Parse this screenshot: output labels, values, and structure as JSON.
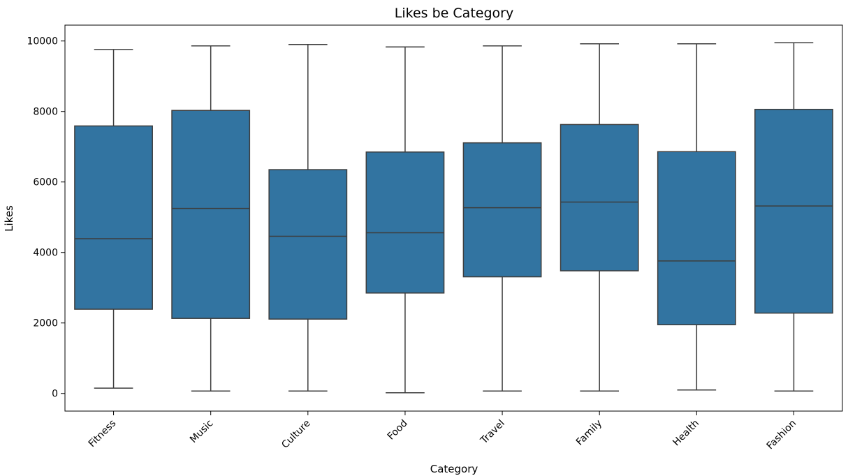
{
  "chart_data": {
    "type": "box",
    "title": "Likes be Category",
    "xlabel": "Category",
    "ylabel": "Likes",
    "ylim": [
      -500,
      10450
    ],
    "yticks": [
      0,
      2000,
      4000,
      6000,
      8000,
      10000
    ],
    "grid": false,
    "categories": [
      "Fitness",
      "Music",
      "Culture",
      "Food",
      "Travel",
      "Family",
      "Health",
      "Fashion"
    ],
    "boxes": [
      {
        "category": "Fitness",
        "whisker_low": 150,
        "q1": 2390,
        "median": 4390,
        "q3": 7590,
        "whisker_high": 9760
      },
      {
        "category": "Music",
        "whisker_low": 70,
        "q1": 2130,
        "median": 5250,
        "q3": 8030,
        "whisker_high": 9860
      },
      {
        "category": "Culture",
        "whisker_low": 70,
        "q1": 2110,
        "median": 4460,
        "q3": 6350,
        "whisker_high": 9900
      },
      {
        "category": "Food",
        "whisker_low": 20,
        "q1": 2850,
        "median": 4560,
        "q3": 6850,
        "whisker_high": 9830
      },
      {
        "category": "Travel",
        "whisker_low": 70,
        "q1": 3310,
        "median": 5270,
        "q3": 7110,
        "whisker_high": 9860
      },
      {
        "category": "Family",
        "whisker_low": 70,
        "q1": 3480,
        "median": 5430,
        "q3": 7630,
        "whisker_high": 9920
      },
      {
        "category": "Health",
        "whisker_low": 100,
        "q1": 1950,
        "median": 3760,
        "q3": 6860,
        "whisker_high": 9920
      },
      {
        "category": "Fashion",
        "whisker_low": 70,
        "q1": 2280,
        "median": 5320,
        "q3": 8060,
        "whisker_high": 9950
      }
    ],
    "colors": {
      "box_fill": "#3274a1",
      "line": "#3d3d3d",
      "axes": "#000000"
    }
  }
}
